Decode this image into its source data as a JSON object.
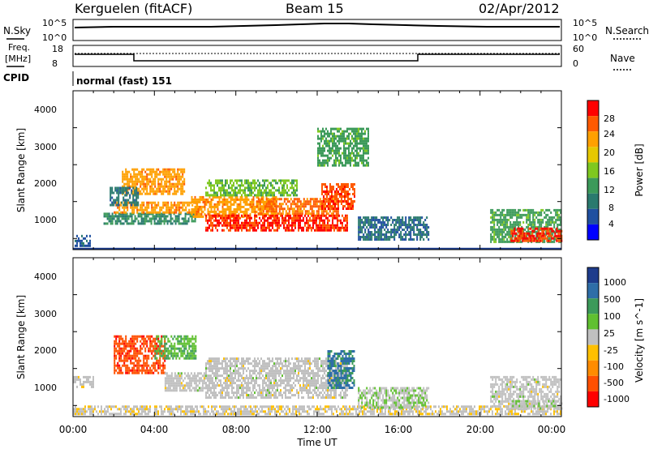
{
  "header": {
    "station": "Kerguelen (fitACF)",
    "beam": "Beam 15",
    "date": "02/Apr/2012"
  },
  "strips": {
    "nsky_label": "N.Sky",
    "nsky_ticks": [
      "10^5",
      "10^0"
    ],
    "nsearch_label": "N.Search",
    "nsearch_ticks": [
      "10^5",
      "10^0"
    ],
    "freq_label_line1": "Freq.",
    "freq_label_line2": "[MHz]",
    "freq_ticks": [
      "18",
      "8"
    ],
    "nave_label": "Nave",
    "nave_ticks": [
      "60",
      "0"
    ],
    "cpid_label": "CPID",
    "cpid_value": "normal (fast) 151"
  },
  "axes": {
    "ylabel": "Slant Range [km]",
    "xlabel": "Time UT",
    "y_ticks": [
      "4000",
      "3000",
      "2000",
      "1000"
    ],
    "x_ticks": [
      "00:00",
      "04:00",
      "08:00",
      "12:00",
      "16:00",
      "20:00",
      "00:00"
    ]
  },
  "power_bar": {
    "label": "Power [dB]",
    "ticks": [
      "28",
      "24",
      "20",
      "16",
      "12",
      "8",
      "4"
    ],
    "colors": [
      "#ff0000",
      "#ff5a00",
      "#ffa000",
      "#e6c800",
      "#7fc820",
      "#3c9a5a",
      "#2a7a6e",
      "#2050a0",
      "#0000ff"
    ]
  },
  "velocity_bar": {
    "label": "Velocity [m s^-1]",
    "ticks": [
      "1000",
      "500",
      "100",
      "25",
      "-25",
      "-100",
      "-500",
      "-1000"
    ],
    "colors": [
      "#1e3c8c",
      "#2e6ea8",
      "#3c9a5a",
      "#60c030",
      "#c0c0c0",
      "#ffc000",
      "#ff8c00",
      "#ff5000",
      "#ff0000"
    ]
  },
  "chart_data": [
    {
      "type": "heatmap",
      "name": "Power",
      "x_range_hours": [
        0,
        24
      ],
      "y_range_km": [
        200,
        4500
      ],
      "value_units": "dB",
      "scale": [
        0,
        30
      ],
      "regions": [
        {
          "t": [
            0.0,
            0.8
          ],
          "r": [
            300,
            600
          ],
          "value": 6
        },
        {
          "t": [
            1.5,
            6.0
          ],
          "r": [
            900,
            1200
          ],
          "value": 10
        },
        {
          "t": [
            2.0,
            6.2
          ],
          "r": [
            1200,
            1500
          ],
          "value": 22
        },
        {
          "t": [
            2.4,
            5.5
          ],
          "r": [
            1700,
            2400
          ],
          "value": 22
        },
        {
          "t": [
            1.8,
            3.2
          ],
          "r": [
            1400,
            1900
          ],
          "value": 8
        },
        {
          "t": [
            5.8,
            10.0
          ],
          "r": [
            1100,
            1650
          ],
          "value": 22
        },
        {
          "t": [
            6.5,
            11.0
          ],
          "r": [
            1650,
            2100
          ],
          "value": 14
        },
        {
          "t": [
            6.5,
            13.5
          ],
          "r": [
            700,
            1150
          ],
          "value": 27
        },
        {
          "t": [
            9.0,
            13.0
          ],
          "r": [
            1150,
            1600
          ],
          "value": 24
        },
        {
          "t": [
            12.2,
            13.8
          ],
          "r": [
            1300,
            2000
          ],
          "value": 26
        },
        {
          "t": [
            12.0,
            14.5
          ],
          "r": [
            2500,
            3500
          ],
          "value": 12
        },
        {
          "t": [
            14.0,
            17.5
          ],
          "r": [
            500,
            1100
          ],
          "value": 7
        },
        {
          "t": [
            20.5,
            24.0
          ],
          "r": [
            400,
            1300
          ],
          "value": 12
        },
        {
          "t": [
            21.5,
            24.0
          ],
          "r": [
            450,
            800
          ],
          "value": 27
        }
      ]
    },
    {
      "type": "heatmap",
      "name": "Velocity",
      "x_range_hours": [
        0,
        24
      ],
      "y_range_km": [
        200,
        4500
      ],
      "value_units": "m s^-1",
      "scale": [
        -1000,
        1000
      ],
      "regions": [
        {
          "t": [
            0.0,
            24.0
          ],
          "r": [
            250,
            500
          ],
          "value": -60
        },
        {
          "t": [
            0.0,
            1.0
          ],
          "r": [
            1000,
            1300
          ],
          "value": 0
        },
        {
          "t": [
            2.0,
            4.5
          ],
          "r": [
            1400,
            2400
          ],
          "value": -700
        },
        {
          "t": [
            4.0,
            6.0
          ],
          "r": [
            1800,
            2400
          ],
          "value": 300
        },
        {
          "t": [
            4.5,
            6.5
          ],
          "r": [
            900,
            1400
          ],
          "value": 0
        },
        {
          "t": [
            6.5,
            13.5
          ],
          "r": [
            700,
            1800
          ],
          "value": 0
        },
        {
          "t": [
            12.5,
            13.8
          ],
          "r": [
            1000,
            2000
          ],
          "value": 600
        },
        {
          "t": [
            14.0,
            17.5
          ],
          "r": [
            450,
            1000
          ],
          "value": 80
        },
        {
          "t": [
            20.5,
            24.0
          ],
          "r": [
            450,
            1300
          ],
          "value": 0
        },
        {
          "t": [
            21.5,
            24.0
          ],
          "r": [
            450,
            650
          ],
          "value": 60
        }
      ]
    }
  ]
}
